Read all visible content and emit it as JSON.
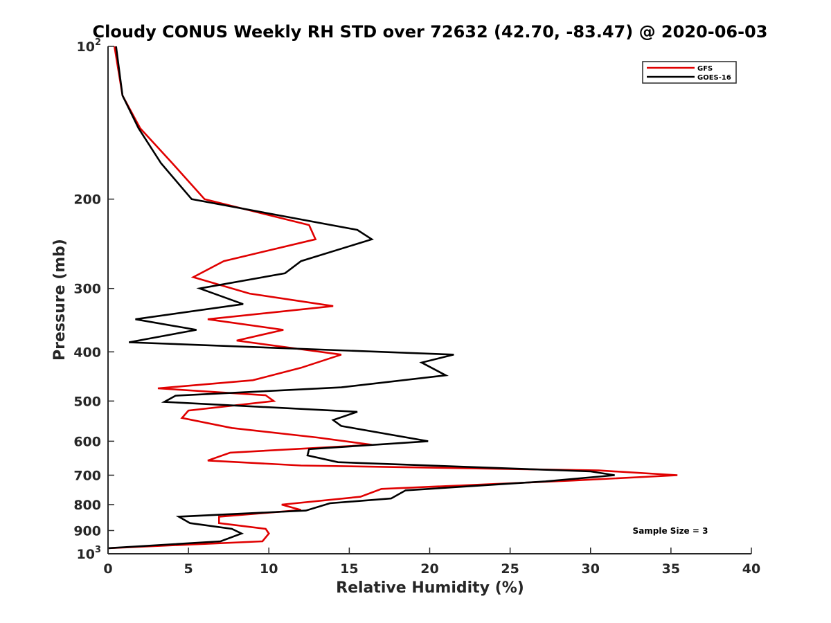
{
  "chart_data": {
    "type": "line",
    "title": "Cloudy CONUS Weekly RH STD over 72632 (42.70, -83.47) @ 2020-06-03",
    "xlabel": "Relative Humidity (%)",
    "ylabel": "Pressure (mb)",
    "xlim": [
      0,
      40
    ],
    "ylim": [
      100,
      1000
    ],
    "y_scale": "log",
    "y_reversed": true,
    "x_ticks": [
      "0",
      "5",
      "10",
      "15",
      "20",
      "25",
      "30",
      "35",
      "40"
    ],
    "y_ticks": [
      {
        "value": 100,
        "base": "10",
        "exp": "2"
      },
      {
        "value": 200,
        "label": "200"
      },
      {
        "value": 300,
        "label": "300"
      },
      {
        "value": 400,
        "label": "400"
      },
      {
        "value": 500,
        "label": "500"
      },
      {
        "value": 600,
        "label": "600"
      },
      {
        "value": 700,
        "label": "700"
      },
      {
        "value": 800,
        "label": "800"
      },
      {
        "value": 900,
        "label": "900"
      },
      {
        "value": 1000,
        "base": "10",
        "exp": "3"
      }
    ],
    "grid": false,
    "legend_position": "top-right",
    "annotation": "Sample Size = 3",
    "series": [
      {
        "name": "GFS",
        "color": "#e00000",
        "points": [
          [
            0.4,
            100
          ],
          [
            0.9,
            125
          ],
          [
            2.0,
            145
          ],
          [
            4.0,
            170
          ],
          [
            6.0,
            200
          ],
          [
            12.5,
            225
          ],
          [
            12.9,
            240
          ],
          [
            7.2,
            265
          ],
          [
            5.3,
            285
          ],
          [
            8.8,
            307
          ],
          [
            14.0,
            325
          ],
          [
            6.2,
            345
          ],
          [
            10.9,
            362
          ],
          [
            8.0,
            380
          ],
          [
            14.5,
            405
          ],
          [
            12.0,
            430
          ],
          [
            9.0,
            455
          ],
          [
            3.1,
            472
          ],
          [
            9.8,
            487
          ],
          [
            10.3,
            500
          ],
          [
            5.0,
            522
          ],
          [
            4.6,
            540
          ],
          [
            7.7,
            565
          ],
          [
            13.0,
            590
          ],
          [
            16.4,
            610
          ],
          [
            7.6,
            632
          ],
          [
            6.2,
            655
          ],
          [
            12.0,
            670
          ],
          [
            30.5,
            685
          ],
          [
            35.4,
            700
          ],
          [
            29.0,
            717
          ],
          [
            17.0,
            745
          ],
          [
            15.7,
            772
          ],
          [
            10.8,
            800
          ],
          [
            12.0,
            820
          ],
          [
            6.9,
            845
          ],
          [
            6.9,
            870
          ],
          [
            9.8,
            893
          ],
          [
            10.0,
            912
          ],
          [
            9.6,
            945
          ],
          [
            0.0,
            975
          ]
        ]
      },
      {
        "name": "GOES-16",
        "color": "#000000",
        "points": [
          [
            0.5,
            100
          ],
          [
            0.9,
            125
          ],
          [
            1.9,
            145
          ],
          [
            3.3,
            170
          ],
          [
            5.2,
            200
          ],
          [
            15.5,
            230
          ],
          [
            16.4,
            240
          ],
          [
            12.0,
            265
          ],
          [
            11.0,
            280
          ],
          [
            5.7,
            300
          ],
          [
            8.4,
            322
          ],
          [
            1.7,
            345
          ],
          [
            5.5,
            362
          ],
          [
            1.3,
            383
          ],
          [
            21.5,
            405
          ],
          [
            19.5,
            420
          ],
          [
            21.0,
            445
          ],
          [
            14.5,
            470
          ],
          [
            4.2,
            488
          ],
          [
            3.5,
            502
          ],
          [
            15.5,
            525
          ],
          [
            14.0,
            545
          ],
          [
            14.5,
            560
          ],
          [
            19.9,
            600
          ],
          [
            12.5,
            622
          ],
          [
            12.4,
            640
          ],
          [
            14.3,
            660
          ],
          [
            30.0,
            688
          ],
          [
            31.5,
            700
          ],
          [
            27.2,
            720
          ],
          [
            18.5,
            750
          ],
          [
            17.6,
            778
          ],
          [
            13.8,
            795
          ],
          [
            12.3,
            822
          ],
          [
            4.4,
            845
          ],
          [
            5.1,
            870
          ],
          [
            7.7,
            893
          ],
          [
            8.3,
            912
          ],
          [
            7.0,
            945
          ],
          [
            0.0,
            975
          ]
        ]
      }
    ]
  }
}
